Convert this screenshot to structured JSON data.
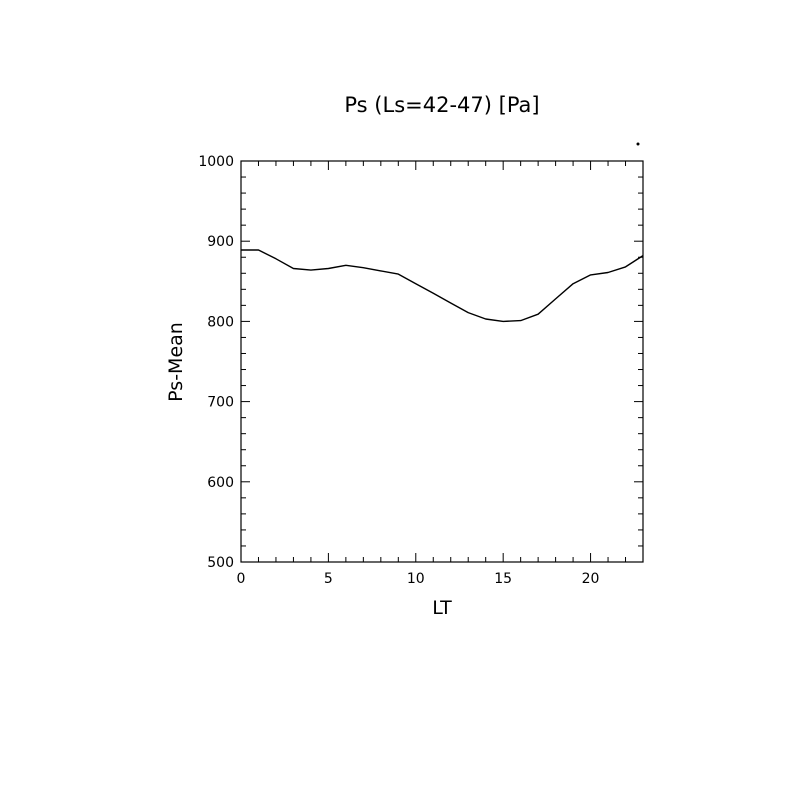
{
  "chart_data": {
    "type": "line",
    "title": "Ps (Ls=42-47) [Pa]",
    "xlabel": "LT",
    "ylabel": "Ps-Mean",
    "xlim": [
      0,
      23
    ],
    "ylim": [
      500,
      1000
    ],
    "x_ticks": [
      0,
      5,
      10,
      15,
      20
    ],
    "x_tick_labels": [
      "0",
      "5",
      "10",
      "15",
      "20"
    ],
    "y_ticks": [
      500,
      600,
      700,
      800,
      900,
      1000
    ],
    "y_tick_labels": [
      "500",
      "600",
      "700",
      "800",
      "900",
      "1000"
    ],
    "grid": false,
    "series": [
      {
        "x": [
          0,
          1,
          2,
          3,
          4,
          5,
          6,
          7,
          8,
          9,
          10,
          11,
          12,
          13,
          14,
          15,
          16,
          17,
          18,
          19,
          20,
          21,
          22,
          23
        ],
        "values": [
          889,
          889,
          878,
          866,
          864,
          866,
          870,
          867,
          863,
          859,
          847,
          835,
          823,
          811,
          803,
          800,
          801,
          809,
          828,
          847,
          858,
          861,
          868,
          882
        ]
      }
    ]
  }
}
